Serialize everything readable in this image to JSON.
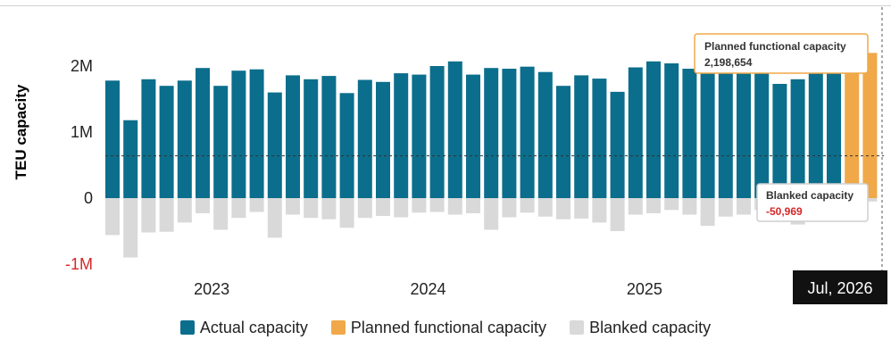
{
  "chart_data": {
    "type": "bar",
    "ylabel": "TEU capacity",
    "ylim": [
      -1000000,
      2750000
    ],
    "yticks": [
      {
        "value": 2000000,
        "label": "2M"
      },
      {
        "value": 1000000,
        "label": "1M"
      },
      {
        "value": 0,
        "label": "0"
      },
      {
        "value": -1000000,
        "label": "-1M"
      }
    ],
    "x_tick_labels": [
      {
        "label": "2023",
        "index": 5.5
      },
      {
        "label": "2024",
        "index": 17.5
      },
      {
        "label": "2025",
        "index": 29.5
      }
    ],
    "reference_line": 640000,
    "series": [
      {
        "name": "Actual capacity",
        "color": "#0b6e8c",
        "values": [
          1780000,
          1180000,
          1800000,
          1700000,
          1780000,
          1970000,
          1700000,
          1930000,
          1950000,
          1600000,
          1860000,
          1800000,
          1850000,
          1590000,
          1790000,
          1760000,
          1890000,
          1870000,
          2000000,
          2070000,
          1870000,
          1970000,
          1960000,
          1990000,
          1910000,
          1700000,
          1860000,
          1810000,
          1610000,
          1980000,
          2070000,
          2040000,
          1960000,
          1960000,
          1950000,
          1930000,
          1950000,
          1730000,
          1800000,
          1930000,
          1950000,
          0,
          0
        ]
      },
      {
        "name": "Planned functional capacity",
        "color": "#f0a848",
        "values": [
          0,
          0,
          0,
          0,
          0,
          0,
          0,
          0,
          0,
          0,
          0,
          0,
          0,
          0,
          0,
          0,
          0,
          0,
          0,
          0,
          0,
          0,
          0,
          0,
          0,
          0,
          0,
          0,
          0,
          0,
          0,
          0,
          0,
          0,
          0,
          0,
          0,
          0,
          0,
          0,
          0,
          1980000,
          2198654
        ]
      },
      {
        "name": "Blanked capacity",
        "color": "#d9d9d9",
        "values": [
          -560000,
          -900000,
          -520000,
          -510000,
          -370000,
          -230000,
          -480000,
          -300000,
          -210000,
          -600000,
          -250000,
          -300000,
          -320000,
          -450000,
          -300000,
          -270000,
          -290000,
          -220000,
          -210000,
          -250000,
          -230000,
          -480000,
          -290000,
          -220000,
          -280000,
          -320000,
          -310000,
          -370000,
          -500000,
          -250000,
          -230000,
          -180000,
          -250000,
          -420000,
          -280000,
          -250000,
          -180000,
          -320000,
          -400000,
          -300000,
          -150000,
          -90000,
          -50969
        ]
      }
    ],
    "legend_position": "bottom"
  },
  "tooltips": {
    "planned": {
      "title": "Planned functional capacity",
      "value": "2,198,654",
      "value_color": "#333333"
    },
    "blanked": {
      "title": "Blanked capacity",
      "value": "-50,969",
      "value_color": "#d62728"
    }
  },
  "cursor_label": "Jul, 2026",
  "colors": {
    "negative_tick": "#d62728"
  }
}
